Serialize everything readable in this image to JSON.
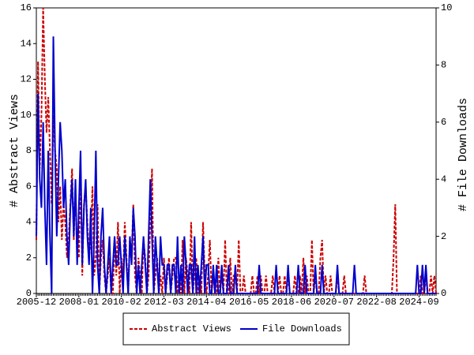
{
  "chart_data": {
    "type": "line",
    "y_label": "# Abstract Views",
    "y2_label": "# File Downloads",
    "categories": [
      "2005-12",
      null,
      null,
      null,
      null,
      null,
      null,
      null,
      null,
      null,
      null,
      null,
      null,
      null,
      null,
      null,
      null,
      null,
      null,
      null,
      null,
      null,
      null,
      null,
      null,
      "2008-01",
      null,
      null,
      null,
      null,
      null,
      null,
      null,
      null,
      null,
      null,
      null,
      null,
      null,
      null,
      null,
      null,
      null,
      null,
      null,
      null,
      null,
      null,
      null,
      null,
      "2010-02",
      null,
      null,
      null,
      null,
      null,
      null,
      null,
      null,
      null,
      null,
      null,
      null,
      null,
      null,
      null,
      null,
      null,
      null,
      null,
      null,
      null,
      null,
      null,
      null,
      "2012-03",
      null,
      null,
      null,
      null,
      null,
      null,
      null,
      null,
      null,
      null,
      null,
      null,
      null,
      null,
      null,
      null,
      null,
      null,
      null,
      null,
      null,
      null,
      null,
      null,
      "2014-04",
      null,
      null,
      null,
      null,
      null,
      null,
      null,
      null,
      null,
      null,
      null,
      null,
      null,
      null,
      null,
      null,
      null,
      null,
      null,
      null,
      null,
      null,
      null,
      null,
      "2016-05",
      null,
      null,
      null,
      null,
      null,
      null,
      null,
      null,
      null,
      null,
      null,
      null,
      null,
      null,
      null,
      null,
      null,
      null,
      null,
      null,
      null,
      null,
      null,
      null,
      "2018-06",
      null,
      null,
      null,
      null,
      null,
      null,
      null,
      null,
      null,
      null,
      null,
      null,
      null,
      null,
      null,
      null,
      null,
      null,
      null,
      null,
      null,
      null,
      null,
      null,
      "2020-07",
      null,
      null,
      null,
      null,
      null,
      null,
      null,
      null,
      null,
      null,
      null,
      null,
      null,
      null,
      null,
      null,
      null,
      null,
      null,
      null,
      null,
      null,
      null,
      null,
      "2022-08",
      null,
      null,
      null,
      null,
      null,
      null,
      null,
      null,
      null,
      null,
      null,
      null,
      null,
      null,
      null,
      null,
      null,
      null,
      null,
      null,
      null,
      null,
      null,
      null,
      "2024-09",
      null,
      null,
      null,
      null,
      null,
      null,
      null,
      null,
      null,
      null
    ],
    "series": [
      {
        "name": "Abstract Views",
        "color": "#cc0000",
        "dash": true,
        "axis": "y",
        "values": [
          3,
          13,
          7,
          10,
          16,
          12,
          9,
          11,
          8,
          5,
          10,
          8,
          7,
          4,
          6,
          3,
          5,
          4,
          2,
          3,
          5,
          7,
          3,
          6,
          2,
          2,
          7,
          1,
          5,
          6,
          4,
          2,
          3,
          6,
          1,
          2,
          5,
          0,
          2,
          3,
          1,
          0,
          1,
          2,
          0,
          0,
          3,
          1,
          4,
          0,
          2,
          1,
          4,
          2,
          0,
          3,
          2,
          5,
          1,
          0,
          2,
          1,
          0,
          3,
          2,
          0,
          1,
          4,
          7,
          0,
          1,
          2,
          0,
          1,
          0,
          2,
          0,
          1,
          2,
          0,
          1,
          2,
          2,
          0,
          1,
          0,
          3,
          0,
          2,
          1,
          0,
          4,
          0,
          1,
          2,
          0,
          1,
          0,
          4,
          1,
          0,
          1,
          3,
          0,
          1,
          0,
          0,
          2,
          0,
          1,
          0,
          3,
          0,
          0,
          2,
          0,
          1,
          1,
          0,
          3,
          0,
          0,
          1,
          0,
          0,
          0,
          0,
          1,
          0,
          0,
          1,
          0,
          1,
          0,
          0,
          1,
          0,
          0,
          0,
          1,
          0,
          0,
          0,
          1,
          0,
          0,
          1,
          0,
          1,
          0,
          0,
          0,
          1,
          0,
          0,
          1,
          0,
          2,
          0,
          1,
          0,
          0,
          3,
          0,
          1,
          0,
          0,
          2,
          3,
          0,
          1,
          0,
          0,
          1,
          0,
          0,
          0,
          1,
          0,
          0,
          0,
          1,
          0,
          0,
          0,
          0,
          0,
          0,
          0,
          0,
          0,
          0,
          0,
          1,
          0,
          0,
          0,
          0,
          0,
          0,
          0,
          0,
          0,
          0,
          0,
          0,
          0,
          0,
          0,
          0,
          2,
          5,
          0,
          0,
          0,
          0,
          0,
          0,
          0,
          0,
          0,
          0,
          0,
          0,
          0,
          0,
          1,
          0,
          0,
          1,
          0,
          0,
          1,
          0,
          1,
          0
        ]
      },
      {
        "name": "File Downloads",
        "color": "#0000cc",
        "dash": false,
        "axis": "y2",
        "values": [
          2,
          7,
          4,
          3,
          6,
          3,
          1,
          5,
          2,
          0,
          9,
          5,
          2,
          4,
          6,
          5,
          3,
          4,
          2,
          1,
          3,
          4,
          2,
          4,
          1,
          3,
          5,
          1,
          3,
          4,
          2,
          1,
          3,
          0,
          2,
          5,
          1,
          0,
          2,
          3,
          1,
          0,
          1,
          2,
          0,
          1,
          2,
          1,
          1,
          2,
          1,
          0,
          2,
          1,
          0,
          2,
          1,
          3,
          2,
          0,
          1,
          0,
          1,
          2,
          1,
          0,
          2,
          4,
          2,
          0,
          2,
          1,
          0,
          2,
          1,
          1,
          0,
          1,
          1,
          0,
          1,
          1,
          0,
          2,
          0,
          1,
          0,
          2,
          1,
          0,
          1,
          1,
          0,
          2,
          0,
          1,
          0,
          1,
          2,
          0,
          1,
          1,
          0,
          0,
          1,
          0,
          1,
          0,
          0,
          1,
          0,
          0,
          0,
          1,
          0,
          0,
          0,
          1,
          0,
          0,
          0,
          0,
          0,
          0,
          0,
          0,
          0,
          0,
          0,
          0,
          0,
          1,
          0,
          0,
          0,
          0,
          0,
          0,
          0,
          0,
          0,
          1,
          0,
          0,
          0,
          0,
          0,
          0,
          1,
          0,
          0,
          0,
          0,
          0,
          1,
          0,
          0,
          0,
          1,
          0,
          0,
          0,
          0,
          0,
          1,
          0,
          0,
          0,
          1,
          0,
          0,
          0,
          0,
          0,
          0,
          0,
          0,
          1,
          0,
          0,
          0,
          0,
          0,
          0,
          0,
          0,
          0,
          1,
          0,
          0,
          0,
          0,
          0,
          0,
          0,
          0,
          0,
          0,
          0,
          0,
          0,
          0,
          0,
          0,
          0,
          0,
          0,
          0,
          0,
          0,
          0,
          0,
          0,
          0,
          0,
          0,
          0,
          0,
          0,
          0,
          0,
          0,
          0,
          0,
          1,
          0,
          0,
          1,
          0,
          1,
          0,
          0,
          0,
          0,
          0,
          0
        ]
      }
    ],
    "ylim": [
      0,
      16
    ],
    "yticks": [
      0,
      2,
      4,
      6,
      8,
      10,
      12,
      14,
      16
    ],
    "y2lim": [
      0,
      10
    ],
    "y2ticks": [
      0,
      2,
      4,
      6,
      8,
      10
    ],
    "legend": "bottom"
  }
}
